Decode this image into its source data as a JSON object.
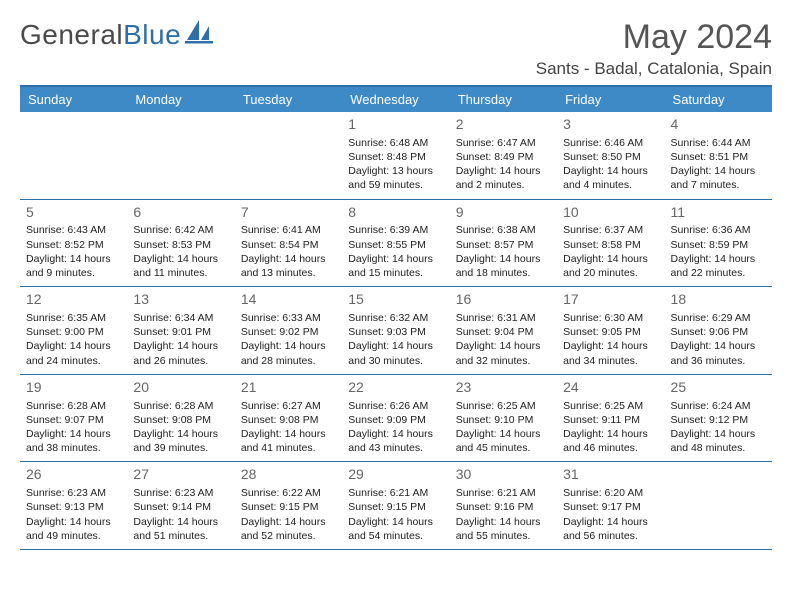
{
  "brand": {
    "name1": "General",
    "name2": "Blue"
  },
  "title": "May 2024",
  "location": "Sants - Badal, Catalonia, Spain",
  "colors": {
    "header_bg": "#3d8ac7",
    "header_text": "#ffffff",
    "rule": "#2f6fa8",
    "daynum": "#666666",
    "body_text": "#222222",
    "title_text": "#555555"
  },
  "day_labels": [
    "Sunday",
    "Monday",
    "Tuesday",
    "Wednesday",
    "Thursday",
    "Friday",
    "Saturday"
  ],
  "weeks": [
    [
      null,
      null,
      null,
      {
        "n": "1",
        "sr": "Sunrise: 6:48 AM",
        "ss": "Sunset: 8:48 PM",
        "dl": "Daylight: 13 hours and 59 minutes."
      },
      {
        "n": "2",
        "sr": "Sunrise: 6:47 AM",
        "ss": "Sunset: 8:49 PM",
        "dl": "Daylight: 14 hours and 2 minutes."
      },
      {
        "n": "3",
        "sr": "Sunrise: 6:46 AM",
        "ss": "Sunset: 8:50 PM",
        "dl": "Daylight: 14 hours and 4 minutes."
      },
      {
        "n": "4",
        "sr": "Sunrise: 6:44 AM",
        "ss": "Sunset: 8:51 PM",
        "dl": "Daylight: 14 hours and 7 minutes."
      }
    ],
    [
      {
        "n": "5",
        "sr": "Sunrise: 6:43 AM",
        "ss": "Sunset: 8:52 PM",
        "dl": "Daylight: 14 hours and 9 minutes."
      },
      {
        "n": "6",
        "sr": "Sunrise: 6:42 AM",
        "ss": "Sunset: 8:53 PM",
        "dl": "Daylight: 14 hours and 11 minutes."
      },
      {
        "n": "7",
        "sr": "Sunrise: 6:41 AM",
        "ss": "Sunset: 8:54 PM",
        "dl": "Daylight: 14 hours and 13 minutes."
      },
      {
        "n": "8",
        "sr": "Sunrise: 6:39 AM",
        "ss": "Sunset: 8:55 PM",
        "dl": "Daylight: 14 hours and 15 minutes."
      },
      {
        "n": "9",
        "sr": "Sunrise: 6:38 AM",
        "ss": "Sunset: 8:57 PM",
        "dl": "Daylight: 14 hours and 18 minutes."
      },
      {
        "n": "10",
        "sr": "Sunrise: 6:37 AM",
        "ss": "Sunset: 8:58 PM",
        "dl": "Daylight: 14 hours and 20 minutes."
      },
      {
        "n": "11",
        "sr": "Sunrise: 6:36 AM",
        "ss": "Sunset: 8:59 PM",
        "dl": "Daylight: 14 hours and 22 minutes."
      }
    ],
    [
      {
        "n": "12",
        "sr": "Sunrise: 6:35 AM",
        "ss": "Sunset: 9:00 PM",
        "dl": "Daylight: 14 hours and 24 minutes."
      },
      {
        "n": "13",
        "sr": "Sunrise: 6:34 AM",
        "ss": "Sunset: 9:01 PM",
        "dl": "Daylight: 14 hours and 26 minutes."
      },
      {
        "n": "14",
        "sr": "Sunrise: 6:33 AM",
        "ss": "Sunset: 9:02 PM",
        "dl": "Daylight: 14 hours and 28 minutes."
      },
      {
        "n": "15",
        "sr": "Sunrise: 6:32 AM",
        "ss": "Sunset: 9:03 PM",
        "dl": "Daylight: 14 hours and 30 minutes."
      },
      {
        "n": "16",
        "sr": "Sunrise: 6:31 AM",
        "ss": "Sunset: 9:04 PM",
        "dl": "Daylight: 14 hours and 32 minutes."
      },
      {
        "n": "17",
        "sr": "Sunrise: 6:30 AM",
        "ss": "Sunset: 9:05 PM",
        "dl": "Daylight: 14 hours and 34 minutes."
      },
      {
        "n": "18",
        "sr": "Sunrise: 6:29 AM",
        "ss": "Sunset: 9:06 PM",
        "dl": "Daylight: 14 hours and 36 minutes."
      }
    ],
    [
      {
        "n": "19",
        "sr": "Sunrise: 6:28 AM",
        "ss": "Sunset: 9:07 PM",
        "dl": "Daylight: 14 hours and 38 minutes."
      },
      {
        "n": "20",
        "sr": "Sunrise: 6:28 AM",
        "ss": "Sunset: 9:08 PM",
        "dl": "Daylight: 14 hours and 39 minutes."
      },
      {
        "n": "21",
        "sr": "Sunrise: 6:27 AM",
        "ss": "Sunset: 9:08 PM",
        "dl": "Daylight: 14 hours and 41 minutes."
      },
      {
        "n": "22",
        "sr": "Sunrise: 6:26 AM",
        "ss": "Sunset: 9:09 PM",
        "dl": "Daylight: 14 hours and 43 minutes."
      },
      {
        "n": "23",
        "sr": "Sunrise: 6:25 AM",
        "ss": "Sunset: 9:10 PM",
        "dl": "Daylight: 14 hours and 45 minutes."
      },
      {
        "n": "24",
        "sr": "Sunrise: 6:25 AM",
        "ss": "Sunset: 9:11 PM",
        "dl": "Daylight: 14 hours and 46 minutes."
      },
      {
        "n": "25",
        "sr": "Sunrise: 6:24 AM",
        "ss": "Sunset: 9:12 PM",
        "dl": "Daylight: 14 hours and 48 minutes."
      }
    ],
    [
      {
        "n": "26",
        "sr": "Sunrise: 6:23 AM",
        "ss": "Sunset: 9:13 PM",
        "dl": "Daylight: 14 hours and 49 minutes."
      },
      {
        "n": "27",
        "sr": "Sunrise: 6:23 AM",
        "ss": "Sunset: 9:14 PM",
        "dl": "Daylight: 14 hours and 51 minutes."
      },
      {
        "n": "28",
        "sr": "Sunrise: 6:22 AM",
        "ss": "Sunset: 9:15 PM",
        "dl": "Daylight: 14 hours and 52 minutes."
      },
      {
        "n": "29",
        "sr": "Sunrise: 6:21 AM",
        "ss": "Sunset: 9:15 PM",
        "dl": "Daylight: 14 hours and 54 minutes."
      },
      {
        "n": "30",
        "sr": "Sunrise: 6:21 AM",
        "ss": "Sunset: 9:16 PM",
        "dl": "Daylight: 14 hours and 55 minutes."
      },
      {
        "n": "31",
        "sr": "Sunrise: 6:20 AM",
        "ss": "Sunset: 9:17 PM",
        "dl": "Daylight: 14 hours and 56 minutes."
      },
      null
    ]
  ]
}
